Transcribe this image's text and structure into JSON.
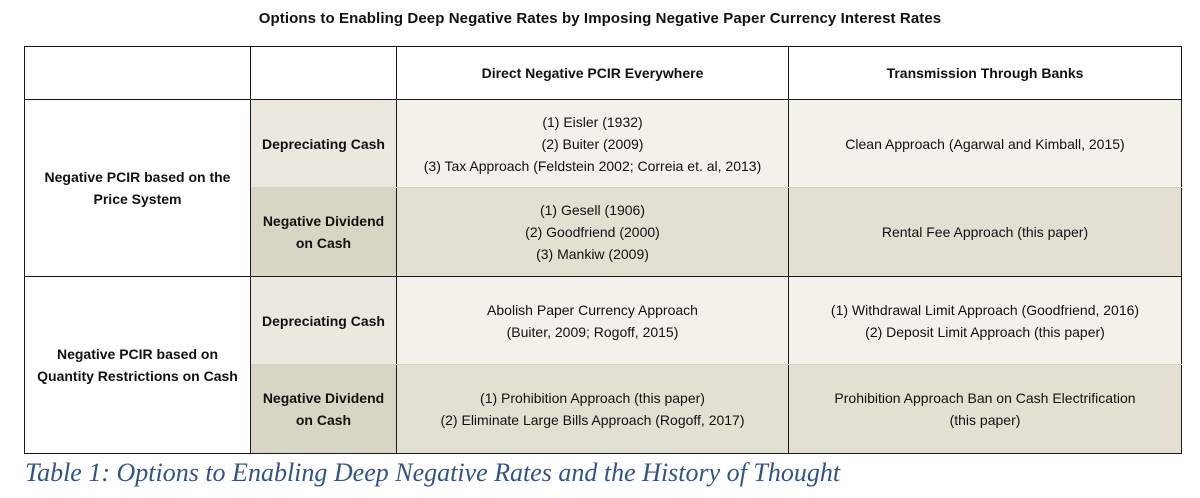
{
  "title": "Options to Enabling Deep Negative Rates by Imposing Negative Paper Currency Interest Rates",
  "header": {
    "col3": "Direct Negative PCIR Everywhere",
    "col4": "Transmission Through Banks"
  },
  "groups": [
    {
      "label": [
        "Negative PCIR based on the",
        "Price System"
      ],
      "rows": [
        {
          "sub": [
            "Depreciating Cash"
          ],
          "direct": [
            "(1) Eisler (1932)",
            "(2) Buiter (2009)",
            "(3) Tax Approach (Feldstein 2002; Correia et. al, 2013)"
          ],
          "banks": [
            "Clean Approach (Agarwal and Kimball, 2015)"
          ]
        },
        {
          "sub": [
            "Negative Dividend",
            "on Cash"
          ],
          "direct": [
            "(1) Gesell (1906)",
            "(2) Goodfriend (2000)",
            "(3) Mankiw (2009)"
          ],
          "banks": [
            "Rental Fee Approach (this paper)"
          ]
        }
      ]
    },
    {
      "label": [
        "Negative PCIR based on",
        "Quantity Restrictions on Cash"
      ],
      "rows": [
        {
          "sub": [
            "Depreciating Cash"
          ],
          "direct": [
            "Abolish Paper Currency Approach",
            "(Buiter, 2009; Rogoff, 2015)"
          ],
          "banks": [
            "(1) Withdrawal Limit Approach (Goodfriend, 2016)",
            "(2) Deposit Limit Approach (this paper)"
          ]
        },
        {
          "sub": [
            "Negative Dividend",
            "on Cash"
          ],
          "direct": [
            "(1) Prohibition Approach (this paper)",
            "(2) Eliminate Large Bills Approach (Rogoff, 2017)"
          ],
          "banks": [
            "Prohibition Approach Ban on Cash Electrification",
            "(this paper)"
          ]
        }
      ]
    }
  ],
  "caption": "Table 1: Options to Enabling Deep Negative Rates and the History of Thought",
  "colors": {
    "caption": "#2e5490",
    "light_cell": "#f2f1ea",
    "dark_cell": "#e3e0d2",
    "light_sub": "#eae8df",
    "dark_sub": "#d9d5c4"
  }
}
